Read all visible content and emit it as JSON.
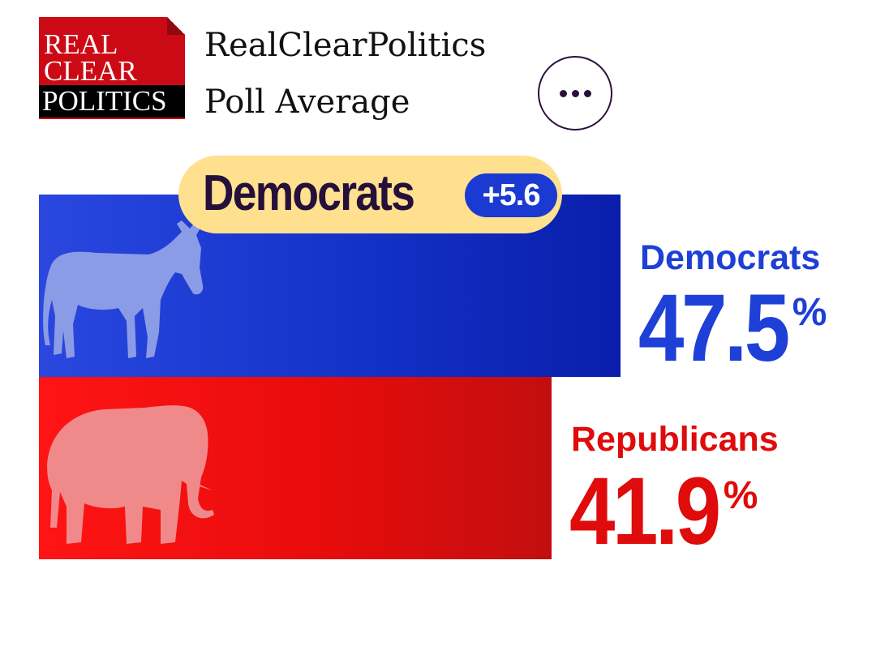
{
  "logo": {
    "line1": "REAL",
    "line2": "CLEAR",
    "line3": "POLITICS"
  },
  "header": {
    "title_line1": "RealClearPolitics",
    "title_line2": "Poll Average",
    "menu_icon": "ellipsis-icon"
  },
  "leader": {
    "party": "Democrats",
    "margin": "+5.6"
  },
  "colors": {
    "democrat": "#1e40d6",
    "republican": "#e00b0b",
    "leader_badge": "#ffe08f"
  },
  "chart_data": {
    "type": "bar",
    "orientation": "horizontal",
    "categories": [
      "Democrats",
      "Republicans"
    ],
    "values": [
      47.5,
      41.9
    ],
    "value_labels": [
      "47.5",
      "41.9"
    ],
    "unit": "%",
    "title": "",
    "xlabel": "",
    "ylabel": ""
  }
}
